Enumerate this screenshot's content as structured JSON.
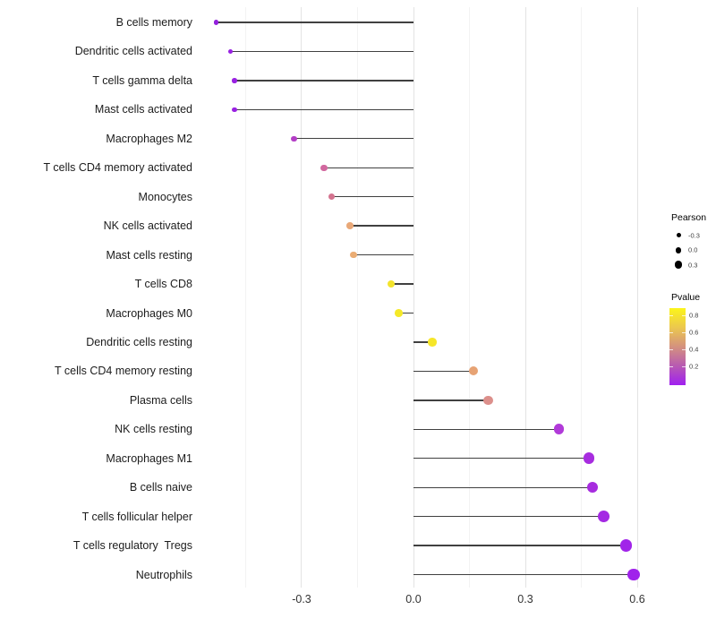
{
  "chart_data": {
    "type": "scatter",
    "variant": "lollipop",
    "title": "",
    "xlabel": "",
    "ylabel": "",
    "x_axis": {
      "ticks": [
        {
          "label": "-0.3",
          "value": -0.3
        },
        {
          "label": "0.0",
          "value": 0.0
        },
        {
          "label": "0.3",
          "value": 0.3
        },
        {
          "label": "0.6",
          "value": 0.6
        }
      ],
      "minor_gridlines": [
        -0.45,
        -0.15,
        0.15,
        0.45
      ],
      "range": [
        -0.586,
        0.646
      ],
      "grid": "vertical-only"
    },
    "size_encoding": "Pearson",
    "color_encoding": "Pvalue",
    "categories": [
      "B cells memory",
      "Dendritic cells activated",
      "T cells gamma delta",
      "Mast cells activated",
      "Macrophages M2",
      "T cells CD4 memory activated",
      "Monocytes",
      "NK cells activated",
      "Mast cells resting",
      "T cells CD8",
      "Macrophages M0",
      "Dendritic cells resting",
      "T cells CD4 memory resting",
      "Plasma cells",
      "NK cells resting",
      "Macrophages M1",
      "B cells naive",
      "T cells follicular helper",
      "T cells regulatory  Tregs",
      "Neutrophils"
    ],
    "points": [
      {
        "category": "B cells memory",
        "pearson": -0.53,
        "color": "#9320DC",
        "pvalue_approx": 0.02
      },
      {
        "category": "Dendritic cells activated",
        "pearson": -0.49,
        "color": "#9821E2",
        "pvalue_approx": 0.03
      },
      {
        "category": "T cells gamma delta",
        "pearson": -0.48,
        "color": "#9921E2",
        "pvalue_approx": 0.03
      },
      {
        "category": "Mast cells activated",
        "pearson": -0.48,
        "color": "#9921E2",
        "pvalue_approx": 0.03
      },
      {
        "category": "Macrophages M2",
        "pearson": -0.32,
        "color": "#B33EC6",
        "pvalue_approx": 0.18
      },
      {
        "category": "T cells CD4 memory activated",
        "pearson": -0.24,
        "color": "#D2689F",
        "pvalue_approx": 0.38
      },
      {
        "category": "Monocytes",
        "pearson": -0.22,
        "color": "#D4738F",
        "pvalue_approx": 0.4
      },
      {
        "category": "NK cells activated",
        "pearson": -0.17,
        "color": "#E9A878",
        "pvalue_approx": 0.55
      },
      {
        "category": "Mast cells resting",
        "pearson": -0.16,
        "color": "#EAAC73",
        "pvalue_approx": 0.56
      },
      {
        "category": "T cells CD8",
        "pearson": -0.06,
        "color": "#F3E42D",
        "pvalue_approx": 0.81
      },
      {
        "category": "Macrophages M0",
        "pearson": -0.04,
        "color": "#F5E928",
        "pvalue_approx": 0.83
      },
      {
        "category": "Dendritic cells resting",
        "pearson": 0.05,
        "color": "#F6E628",
        "pvalue_approx": 0.82
      },
      {
        "category": "T cells CD4 memory resting",
        "pearson": 0.16,
        "color": "#E7A374",
        "pvalue_approx": 0.53
      },
      {
        "category": "Plasma cells",
        "pearson": 0.2,
        "color": "#DC8F8B",
        "pvalue_approx": 0.45
      },
      {
        "category": "NK cells resting",
        "pearson": 0.39,
        "color": "#B13AD9",
        "pvalue_approx": 0.12
      },
      {
        "category": "Macrophages M1",
        "pearson": 0.47,
        "color": "#A72CDF",
        "pvalue_approx": 0.08
      },
      {
        "category": "B cells naive",
        "pearson": 0.48,
        "color": "#A72CDF",
        "pvalue_approx": 0.08
      },
      {
        "category": "T cells follicular helper",
        "pearson": 0.51,
        "color": "#A429E3",
        "pvalue_approx": 0.05
      },
      {
        "category": "T cells regulatory  Tregs",
        "pearson": 0.57,
        "color": "#A124E9",
        "pvalue_approx": 0.04
      },
      {
        "category": "Neutrophils",
        "pearson": 0.59,
        "color": "#A022EB",
        "pvalue_approx": 0.03
      }
    ],
    "legend": {
      "size": {
        "title": "Pearson",
        "items": [
          {
            "label": "-0.3",
            "value": -0.3,
            "diameter": 5.0
          },
          {
            "label": "0.0",
            "value": 0.0,
            "diameter": 6.8
          },
          {
            "label": "0.3",
            "value": 0.3,
            "diameter": 8.6
          }
        ],
        "dot_color": "#000000"
      },
      "color": {
        "title": "Pvalue",
        "ticks": [
          0.8,
          0.6,
          0.4,
          0.2
        ],
        "bar_range": [
          -0.02,
          0.88
        ],
        "gradient_bottom_to_top": [
          "#A020F0",
          "#B85AB2",
          "#D4927E",
          "#ECC84E",
          "#FCF51A"
        ]
      }
    },
    "stem_color": "#404040"
  }
}
